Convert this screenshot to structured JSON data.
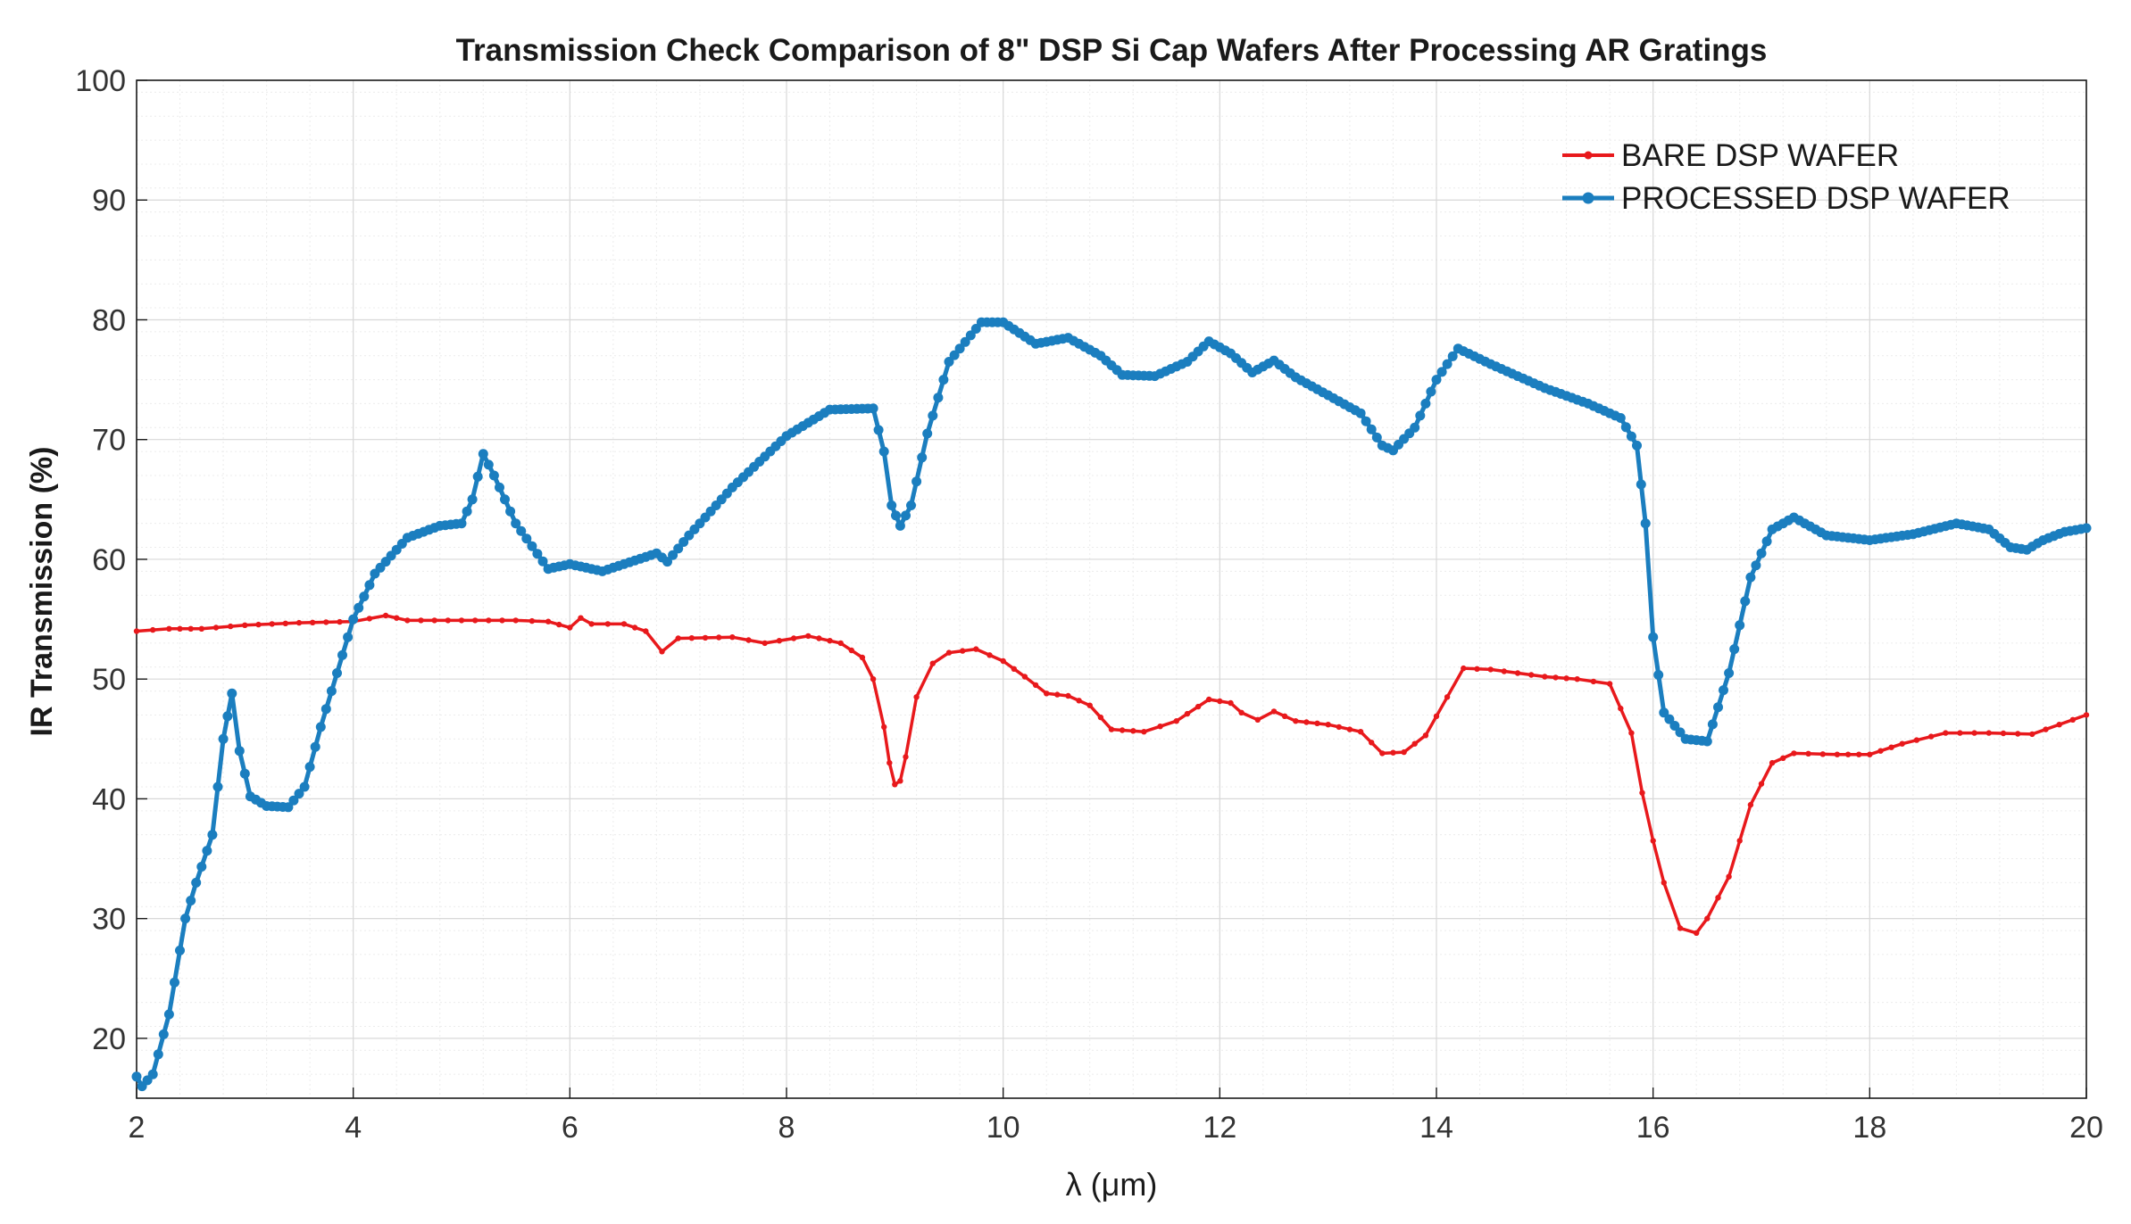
{
  "chart_data": {
    "type": "line",
    "title": "Transmission Check Comparison of 8\" DSP Si Cap Wafers After Processing AR Gratings",
    "xlabel": "λ (μm)",
    "ylabel": "IR Transmission (%)",
    "xlim": [
      2,
      20
    ],
    "ylim": [
      15,
      100
    ],
    "xticks": [
      2,
      4,
      6,
      8,
      10,
      12,
      14,
      16,
      18,
      20
    ],
    "yticks": [
      20,
      30,
      40,
      50,
      60,
      70,
      80,
      90,
      100
    ],
    "grid": true,
    "minor_grid": true,
    "legend_position": "top-right",
    "series": [
      {
        "name": "BARE DSP WAFER",
        "color": "#e8191c",
        "marker": "small",
        "x": [
          2.0,
          2.3,
          2.6,
          3.0,
          3.5,
          4.0,
          4.3,
          4.5,
          5.0,
          5.5,
          5.8,
          6.0,
          6.1,
          6.2,
          6.5,
          6.7,
          6.85,
          7.0,
          7.5,
          7.8,
          8.2,
          8.5,
          8.7,
          8.8,
          8.9,
          8.95,
          9.0,
          9.05,
          9.1,
          9.2,
          9.35,
          9.5,
          9.75,
          10.0,
          10.2,
          10.4,
          10.6,
          10.8,
          11.0,
          11.3,
          11.6,
          11.9,
          12.1,
          12.2,
          12.35,
          12.5,
          12.7,
          13.0,
          13.3,
          13.5,
          13.7,
          13.9,
          14.1,
          14.25,
          14.5,
          15.0,
          15.3,
          15.6,
          15.8,
          15.9,
          16.0,
          16.1,
          16.25,
          16.4,
          16.5,
          16.7,
          16.9,
          17.1,
          17.3,
          17.7,
          18.0,
          18.3,
          18.7,
          19.1,
          19.5,
          20.0
        ],
        "y": [
          54.0,
          54.2,
          54.2,
          54.5,
          54.7,
          54.8,
          55.3,
          54.9,
          54.9,
          54.9,
          54.8,
          54.3,
          55.1,
          54.6,
          54.6,
          54.0,
          52.3,
          53.4,
          53.5,
          53.0,
          53.6,
          53.0,
          51.8,
          50.0,
          46.0,
          43.0,
          41.2,
          41.5,
          43.5,
          48.5,
          51.3,
          52.2,
          52.5,
          51.5,
          50.2,
          48.8,
          48.6,
          47.8,
          45.8,
          45.6,
          46.5,
          48.3,
          48.0,
          47.2,
          46.6,
          47.3,
          46.5,
          46.2,
          45.6,
          43.8,
          43.9,
          45.3,
          48.5,
          50.9,
          50.8,
          50.2,
          50.0,
          49.6,
          45.5,
          40.5,
          36.5,
          33.0,
          29.2,
          28.8,
          30.0,
          33.5,
          39.5,
          43.0,
          43.8,
          43.7,
          43.7,
          44.6,
          45.5,
          45.5,
          45.4,
          47.0
        ]
      },
      {
        "name": "PROCESSED DSP WAFER",
        "color": "#1b7ebf",
        "marker": "medium",
        "x": [
          2.0,
          2.05,
          2.15,
          2.3,
          2.45,
          2.55,
          2.7,
          2.8,
          2.88,
          2.95,
          3.05,
          3.2,
          3.4,
          3.55,
          3.7,
          3.85,
          4.0,
          4.2,
          4.5,
          4.8,
          5.0,
          5.1,
          5.2,
          5.3,
          5.5,
          5.8,
          6.0,
          6.3,
          6.5,
          6.8,
          6.9,
          7.1,
          7.5,
          8.0,
          8.4,
          8.8,
          8.9,
          8.97,
          9.05,
          9.15,
          9.3,
          9.5,
          9.8,
          10.0,
          10.3,
          10.6,
          10.9,
          11.1,
          11.4,
          11.7,
          11.9,
          12.1,
          12.3,
          12.5,
          12.7,
          13.0,
          13.3,
          13.5,
          13.6,
          13.8,
          14.0,
          14.2,
          14.5,
          15.0,
          15.4,
          15.7,
          15.85,
          15.93,
          16.0,
          16.1,
          16.3,
          16.5,
          16.7,
          16.9,
          17.1,
          17.3,
          17.6,
          18.0,
          18.4,
          18.8,
          19.1,
          19.3,
          19.45,
          19.6,
          19.8,
          20.0
        ],
        "y": [
          16.8,
          16.0,
          17.0,
          22.0,
          30.0,
          33.0,
          37.0,
          45.0,
          48.8,
          44.0,
          40.2,
          39.4,
          39.3,
          41.0,
          46.0,
          50.5,
          55.0,
          58.8,
          61.8,
          62.8,
          63.0,
          65.0,
          68.8,
          67.0,
          63.0,
          59.2,
          59.6,
          59.0,
          59.6,
          60.5,
          59.8,
          62.0,
          66.0,
          70.3,
          72.5,
          72.6,
          69.0,
          64.5,
          62.8,
          64.5,
          70.5,
          76.5,
          79.8,
          79.8,
          78.0,
          78.5,
          77.0,
          75.4,
          75.3,
          76.5,
          78.2,
          77.2,
          75.6,
          76.6,
          75.2,
          73.7,
          72.2,
          69.5,
          69.1,
          71.0,
          75.0,
          77.6,
          76.3,
          74.3,
          73.0,
          71.8,
          69.5,
          63.0,
          53.5,
          47.2,
          45.0,
          44.8,
          50.5,
          58.5,
          62.5,
          63.5,
          62.0,
          61.6,
          62.1,
          63.0,
          62.5,
          61.0,
          60.8,
          61.6,
          62.3,
          62.6
        ]
      }
    ]
  }
}
